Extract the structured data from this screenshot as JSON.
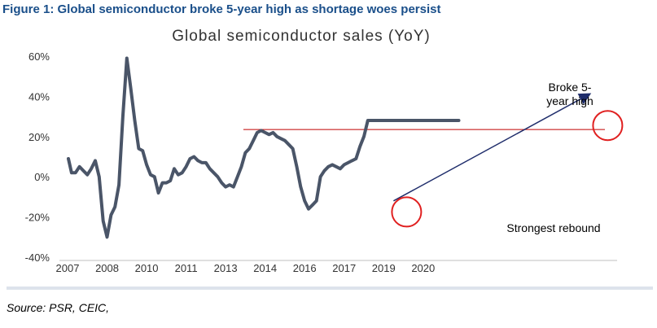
{
  "figure_title": "Figure 1: Global semiconductor broke 5-year high as shortage woes persist",
  "source": "Source: PSR, CEIC,",
  "colors": {
    "title": "#1a4f8a",
    "line": "#4a5568",
    "reference_line": "#c00000",
    "circle": "#e02020",
    "arrow": "#1f2d6b"
  },
  "chart_data": {
    "type": "line",
    "title": "Global semiconductor sales (YoY)",
    "xlabel": "",
    "ylabel": "",
    "xlim": [
      2007.0,
      2020.95
    ],
    "ylim": [
      -40,
      60
    ],
    "yticks": [
      60,
      40,
      20,
      0,
      -20,
      -40
    ],
    "ytick_labels": [
      "60%",
      "40%",
      "20%",
      "0%",
      "-20%",
      "-40%"
    ],
    "xticks": [
      {
        "label": "2007",
        "x": 2007.0
      },
      {
        "label": "2008",
        "x": 2008.0
      },
      {
        "label": "2010",
        "x": 2009.0
      },
      {
        "label": "2011",
        "x": 2010.0
      },
      {
        "label": "2013",
        "x": 2011.0
      },
      {
        "label": "2014",
        "x": 2012.0
      },
      {
        "label": "2016",
        "x": 2013.0
      },
      {
        "label": "2017",
        "x": 2014.0
      },
      {
        "label": "2019",
        "x": 2015.0
      },
      {
        "label": "2020",
        "x": 2016.0
      }
    ],
    "grid": false,
    "series": [
      {
        "name": "",
        "x": [
          2007.02,
          2007.1,
          2007.2,
          2007.3,
          2007.4,
          2007.5,
          2007.6,
          2007.7,
          2007.8,
          2007.9,
          2008.0,
          2008.1,
          2008.2,
          2008.3,
          2008.4,
          2008.5,
          2008.6,
          2008.7,
          2008.8,
          2008.9,
          2009.0,
          2009.1,
          2009.2,
          2009.3,
          2009.4,
          2009.5,
          2009.6,
          2009.7,
          2009.8,
          2009.9,
          2010.0,
          2010.1,
          2010.2,
          2010.3,
          2010.4,
          2010.5,
          2010.6,
          2010.7,
          2010.8,
          2010.9,
          2011.0,
          2011.1,
          2011.2,
          2011.3,
          2011.4,
          2011.5,
          2011.6,
          2011.7,
          2011.8,
          2011.9,
          2012.0,
          2012.1,
          2012.2,
          2012.3,
          2012.4,
          2012.5,
          2012.6,
          2012.7,
          2012.8,
          2012.9,
          2013.0,
          2013.1,
          2013.2,
          2013.3,
          2013.4,
          2013.5,
          2013.6,
          2013.7,
          2013.8,
          2013.9,
          2014.0,
          2014.1,
          2014.2,
          2014.3,
          2014.4,
          2014.5,
          2014.6,
          2014.7,
          2014.8,
          2014.9,
          2015.0,
          2015.1,
          2015.2,
          2015.3,
          2015.4,
          2015.5,
          2015.6,
          2015.7,
          2015.8,
          2015.9,
          2016.0,
          2016.1,
          2016.2,
          2016.3,
          2016.4,
          2016.5,
          2016.6,
          2016.7,
          2016.8,
          2016.9
        ],
        "y": [
          9,
          2,
          2,
          5,
          3,
          1,
          4,
          8,
          0,
          -22,
          -30,
          -19,
          -15,
          -4,
          30,
          59,
          44,
          28,
          14,
          13,
          6,
          1,
          0,
          -8,
          -3,
          -3,
          -2,
          4,
          1,
          2,
          5,
          9,
          10,
          8,
          7,
          7,
          4,
          2,
          0,
          -3,
          -5,
          -4,
          -5,
          0,
          5,
          12,
          14,
          18,
          22,
          23,
          22,
          21,
          22,
          20,
          19,
          18,
          16,
          14,
          5,
          -5,
          -12,
          -16,
          -14,
          -12,
          0,
          3,
          5,
          6,
          5,
          4,
          6,
          7,
          8,
          9,
          15,
          20,
          28,
          28,
          28,
          28,
          28,
          28,
          28,
          28,
          28,
          28,
          28,
          28,
          28,
          28,
          28,
          28,
          28,
          28,
          28,
          28,
          28,
          28,
          28,
          28
        ]
      }
    ],
    "annotations": [
      {
        "text_lines": [
          "Broke 5-",
          "year high"
        ]
      },
      {
        "text_lines": [
          "Strongest rebound"
        ]
      }
    ]
  }
}
